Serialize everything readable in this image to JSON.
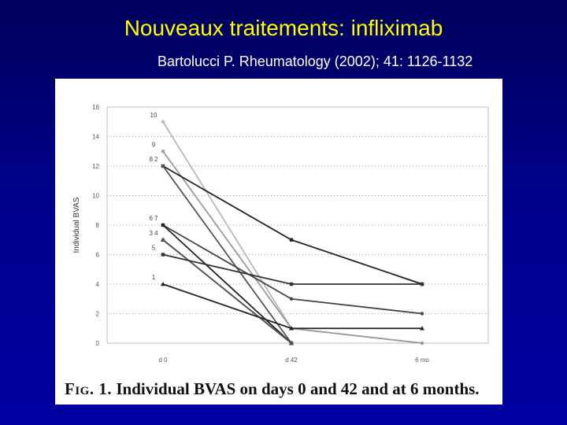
{
  "slide": {
    "title": "Nouveaux traitements: infliximab",
    "citation": "Bartolucci P.  Rheumatology (2002); 41: 1126-1132"
  },
  "figure": {
    "caption_label": "Fig. 1.",
    "caption_text": "Individual BVAS on days 0 and 42 and at 6 months."
  },
  "colors": {
    "background": "#000089",
    "title": "#ffff00",
    "citation": "#ffffff",
    "figure_bg": "#ffffff",
    "plot_ink": "#222222"
  },
  "chart_data": {
    "type": "line",
    "title": "",
    "xlabel": "",
    "ylabel": "Individual BVAS",
    "categories": [
      "d 0",
      "d 42",
      "6 mo"
    ],
    "ylim": [
      0,
      16
    ],
    "yticks": [
      0,
      2,
      4,
      6,
      8,
      10,
      12,
      14,
      16
    ],
    "grid": "horizontal-dotted",
    "point_labels_d0": [
      {
        "text": "10",
        "y": 15
      },
      {
        "text": "9",
        "y": 13
      },
      {
        "text": "8  2",
        "y": 12
      },
      {
        "text": "6  7",
        "y": 8
      },
      {
        "text": "3  4",
        "y": 7
      },
      {
        "text": "5",
        "y": 6
      },
      {
        "text": "1",
        "y": 4
      }
    ],
    "series": [
      {
        "values": [
          15,
          1,
          0
        ],
        "color": "#b8b8b8",
        "marker": "circle"
      },
      {
        "values": [
          13,
          1,
          0
        ],
        "color": "#9a9a9a",
        "marker": "circle"
      },
      {
        "values": [
          12,
          7,
          4
        ],
        "color": "#222222",
        "marker": "square"
      },
      {
        "values": [
          12,
          0,
          null
        ],
        "color": "#555555",
        "marker": "circle"
      },
      {
        "values": [
          8,
          3,
          2
        ],
        "color": "#444444",
        "marker": "circle"
      },
      {
        "values": [
          8,
          0,
          null
        ],
        "color": "#222222",
        "marker": "square"
      },
      {
        "values": [
          7,
          0,
          null
        ],
        "color": "#222222",
        "marker": "triangle"
      },
      {
        "values": [
          7,
          0,
          null
        ],
        "color": "#555555",
        "marker": "circle"
      },
      {
        "values": [
          6,
          4,
          4
        ],
        "color": "#333333",
        "marker": "square"
      },
      {
        "values": [
          4,
          1,
          1
        ],
        "color": "#222222",
        "marker": "triangle"
      }
    ]
  }
}
